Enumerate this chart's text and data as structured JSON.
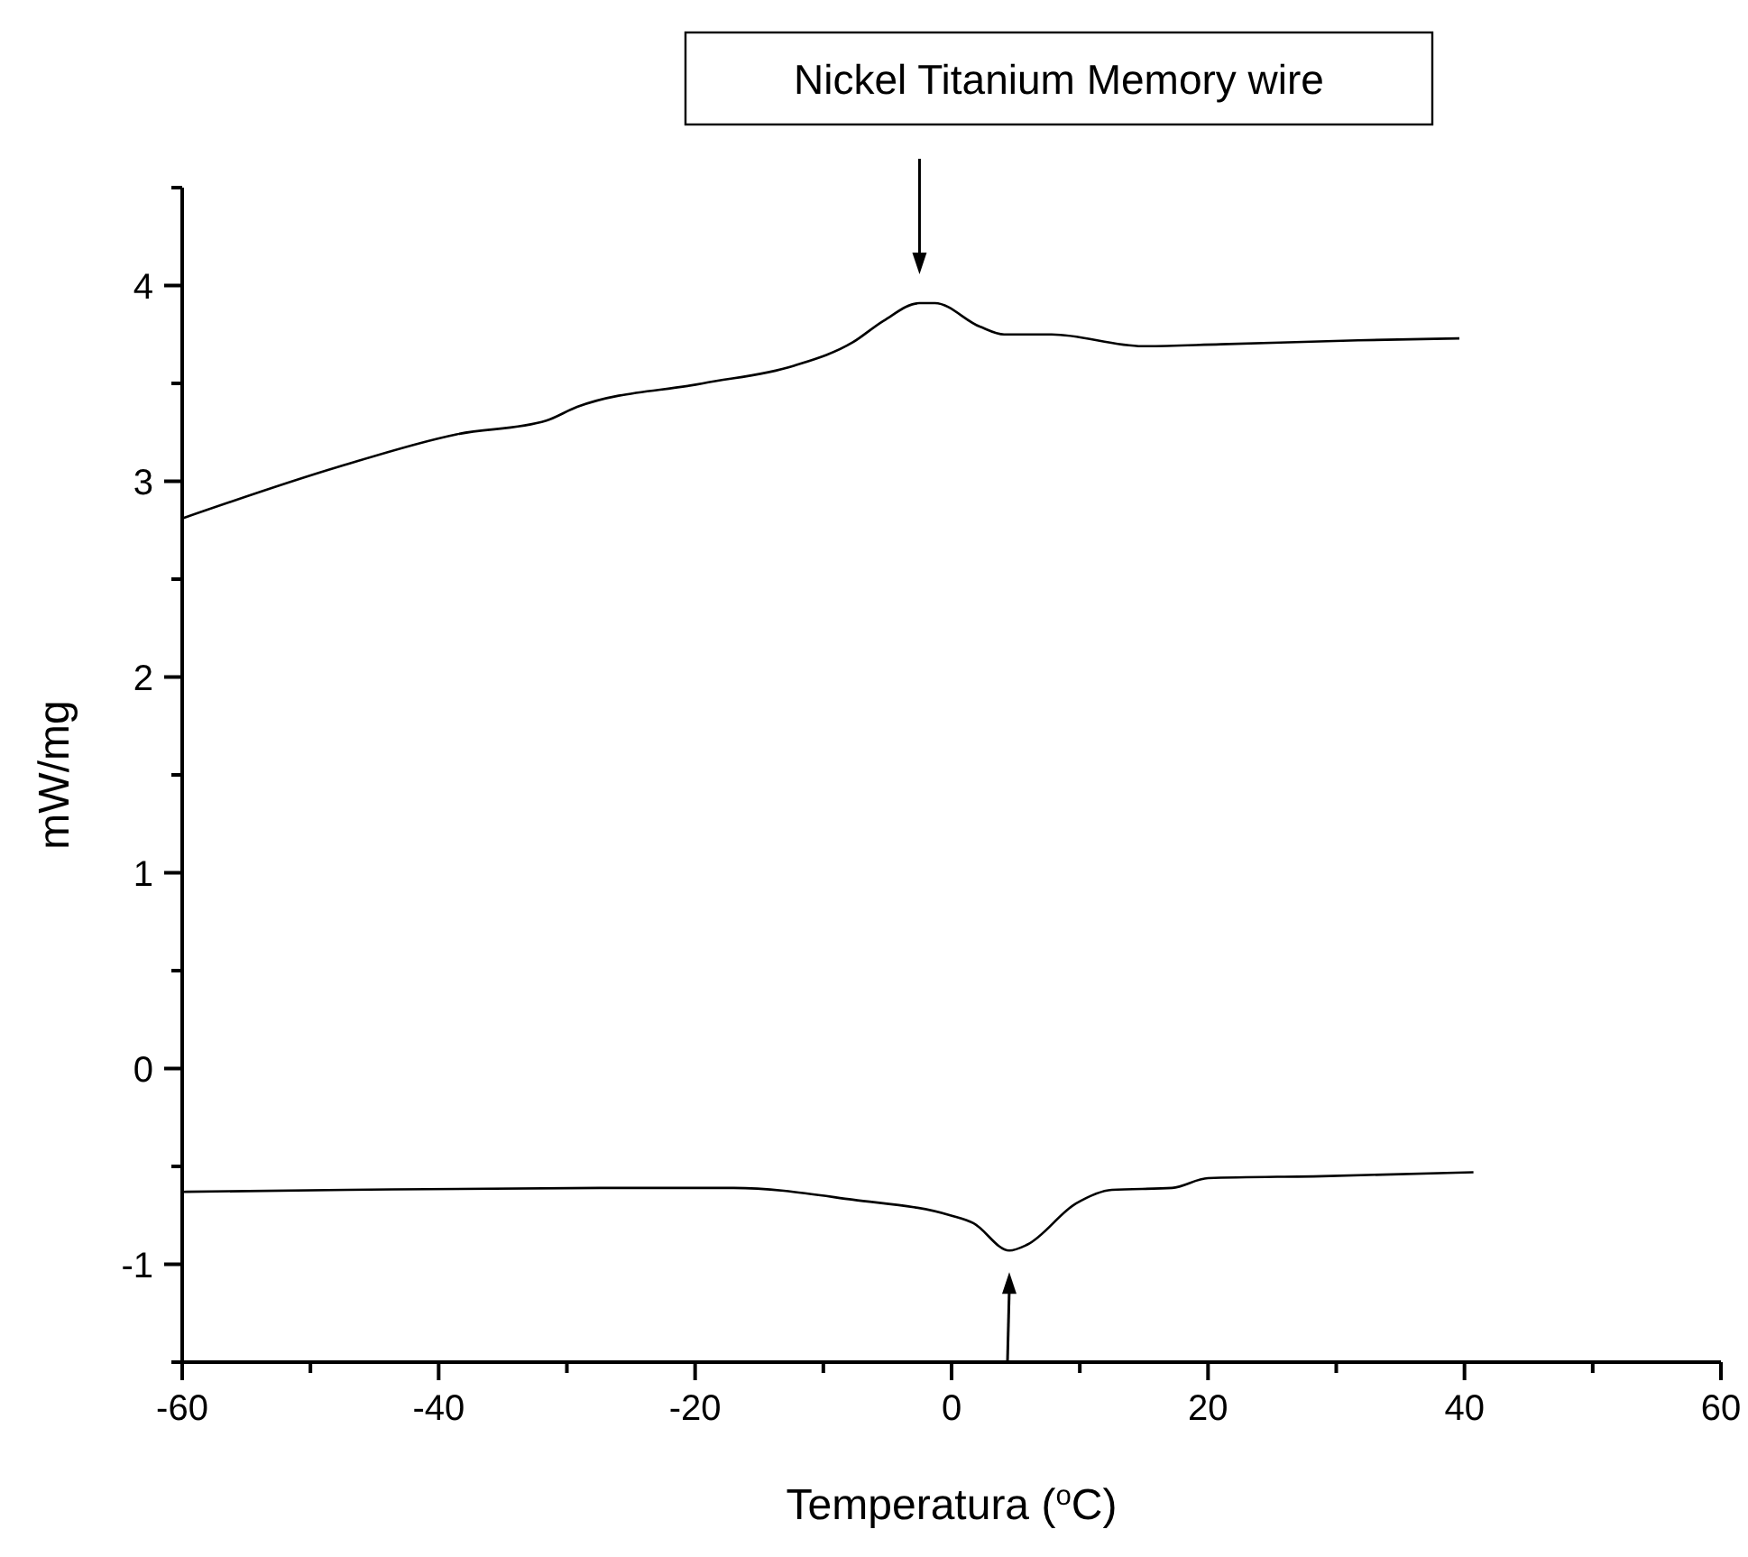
{
  "chart_data": {
    "type": "line",
    "title": "Nickel Titanium Memory wire",
    "xlabel": "Temperatura ($^{o}$C)",
    "ylabel": "mW/mg",
    "xlim": [
      -60,
      60
    ],
    "ylim": [
      -1.5,
      4.5
    ],
    "xticks": [
      -60,
      {
        "value": -50,
        "label": null
      },
      -40,
      {
        "value": -30,
        "label": null
      },
      -20,
      {
        "value": -10,
        "label": null
      },
      0,
      {
        "value": 10,
        "label": null
      },
      20,
      {
        "value": 30,
        "label": null
      },
      40,
      {
        "value": 50,
        "label": null
      },
      60
    ],
    "yticks": [
      {
        "value": -1.5,
        "label": null
      },
      -1,
      {
        "value": -0.5,
        "label": null
      },
      0,
      {
        "value": 0.5,
        "label": null
      },
      1,
      {
        "value": 1.5,
        "label": null
      },
      2,
      {
        "value": 2.5,
        "label": null
      },
      3,
      {
        "value": 3.5,
        "label": null
      },
      4,
      {
        "value": 4.5,
        "label": null
      }
    ],
    "grid": false,
    "marker": "none",
    "line_style": "solid",
    "series": [
      {
        "color": "#000000",
        "x": [
          -60,
          -48,
          -38.6,
          -31.6,
          -29.2,
          -19.4,
          -12.3,
          -7.7,
          -5.3,
          -2.5,
          -1.3,
          2.2,
          4.1,
          7.8,
          14.9,
          21,
          31.7,
          39.6
        ],
        "values": [
          2.81,
          3.07,
          3.24,
          3.31,
          3.38,
          3.5,
          3.59,
          3.71,
          3.82,
          3.91,
          3.91,
          3.79,
          3.75,
          3.75,
          3.69,
          3.7,
          3.72,
          3.73
        ]
      },
      {
        "color": "#000000",
        "x": [
          -60,
          -47.1,
          -27.4,
          -17,
          -7.7,
          -0.1,
          1.7,
          4.5,
          5.9,
          9.7,
          12.5,
          17.2,
          20,
          28.9,
          40.7
        ],
        "values": [
          -0.63,
          -0.62,
          -0.61,
          -0.61,
          -0.67,
          -0.75,
          -0.79,
          -0.93,
          -0.9,
          -0.69,
          -0.62,
          -0.61,
          -0.56,
          -0.55,
          -0.53
        ]
      }
    ]
  }
}
